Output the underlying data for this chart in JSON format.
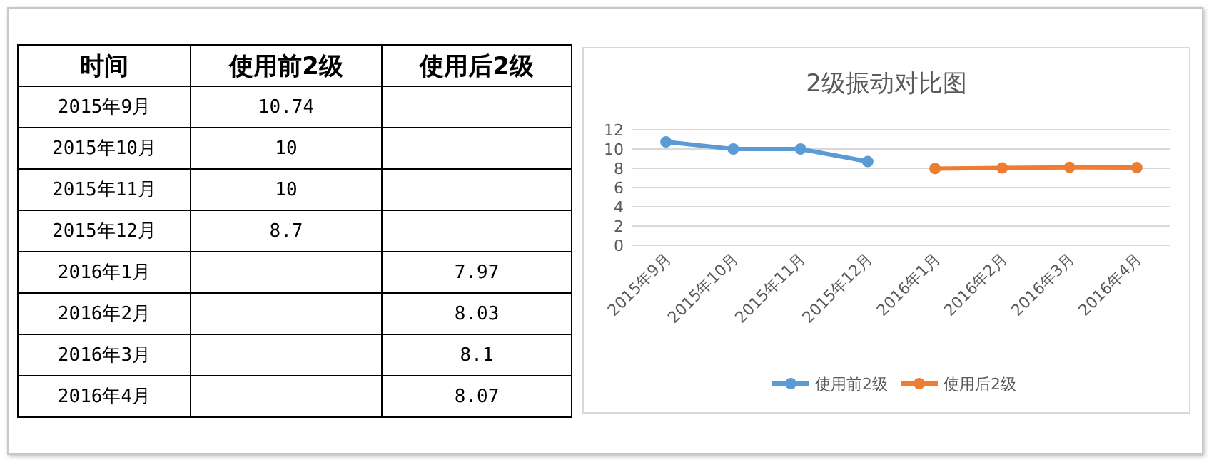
{
  "chart_data": [
    {
      "type": "other",
      "annotations": [
        "时间"
      ],
      "categories": [
        "2015年9月",
        "2015年10月",
        "2015年11月",
        "2015年12月",
        "2016年1月",
        "2016年2月",
        "2016年3月",
        "2016年4月"
      ],
      "series": [
        {
          "name": "使用前2级",
          "values": [
            10.74,
            10,
            10,
            8.7,
            null,
            null,
            null,
            null
          ]
        },
        {
          "name": "使用后2级",
          "values": [
            null,
            null,
            null,
            null,
            7.97,
            8.03,
            8.1,
            8.07
          ]
        }
      ],
      "data_labels": true
    },
    {
      "type": "line",
      "title": "2级振动对比图",
      "categories": [
        "2015年9月",
        "2015年10月",
        "2015年11月",
        "2015年12月",
        "2016年1月",
        "2016年2月",
        "2016年3月",
        "2016年4月"
      ],
      "series": [
        {
          "name": "使用前2级",
          "color": "#5b9bd5",
          "values": [
            10.74,
            10,
            10,
            8.7,
            null,
            null,
            null,
            null
          ]
        },
        {
          "name": "使用后2级",
          "color": "#ed7d31",
          "values": [
            null,
            null,
            null,
            null,
            7.97,
            8.03,
            8.1,
            8.07
          ]
        }
      ],
      "ylim": [
        0,
        12
      ],
      "yticks": [
        0,
        2,
        4,
        6,
        8,
        10,
        12
      ],
      "grid": "y",
      "legend": "bottom",
      "marker": "circle",
      "line_style": "solid"
    }
  ]
}
